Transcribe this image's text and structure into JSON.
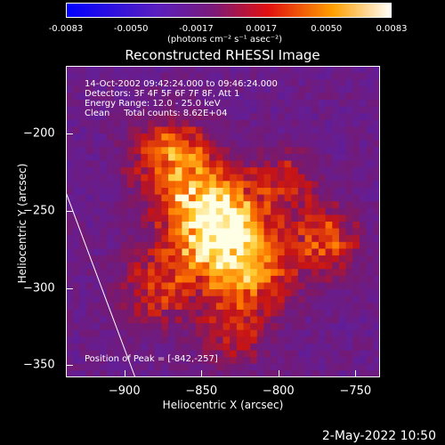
{
  "colorbar": {
    "ticks": [
      "-0.0083",
      "-0.0050",
      "-0.0017",
      "0.0017",
      "0.0050",
      "0.0083"
    ],
    "units": "(photons cm⁻² s⁻¹ asec⁻²)"
  },
  "info": {
    "line1": "14-Oct-2002 09:42:24.000 to 09:46:24.000",
    "line2": "Detectors: 3F 4F 5F 6F 7F 8F, Att 1",
    "line3": "Energy Range: 12.0 - 25.0 keV",
    "line4": "Clean     Total counts: 8.62E+04",
    "peak": "Position of Peak = [-842,-257]"
  },
  "footer": {
    "timestamp": "2-May-2022 10:50"
  },
  "chart_data": {
    "type": "heatmap",
    "title": "Reconstructed RHESSI Image",
    "xlabel": "Heliocentric X (arcsec)",
    "ylabel": "Heliocentric Y (arcsec)",
    "xlim": [
      -938,
      -734
    ],
    "ylim": [
      -358,
      -156
    ],
    "xticks": [
      -900,
      -850,
      -800,
      -750
    ],
    "yticks": [
      -200,
      -250,
      -300,
      -350
    ],
    "ytick_labels": [
      "−200",
      "−250",
      "−300",
      "−350"
    ],
    "xtick_labels": [
      "−900",
      "−850",
      "−800",
      "−750"
    ],
    "colorbar_range": [
      -0.0083,
      0.0083
    ],
    "colormap": [
      "#0000ff",
      "#800080",
      "#ff0000",
      "#ffa500",
      "#ffffff"
    ],
    "peak": {
      "x": -842,
      "y": -257
    },
    "limb_line": {
      "x1": -938,
      "y1": -238,
      "x2": -893,
      "y2": -358
    }
  }
}
